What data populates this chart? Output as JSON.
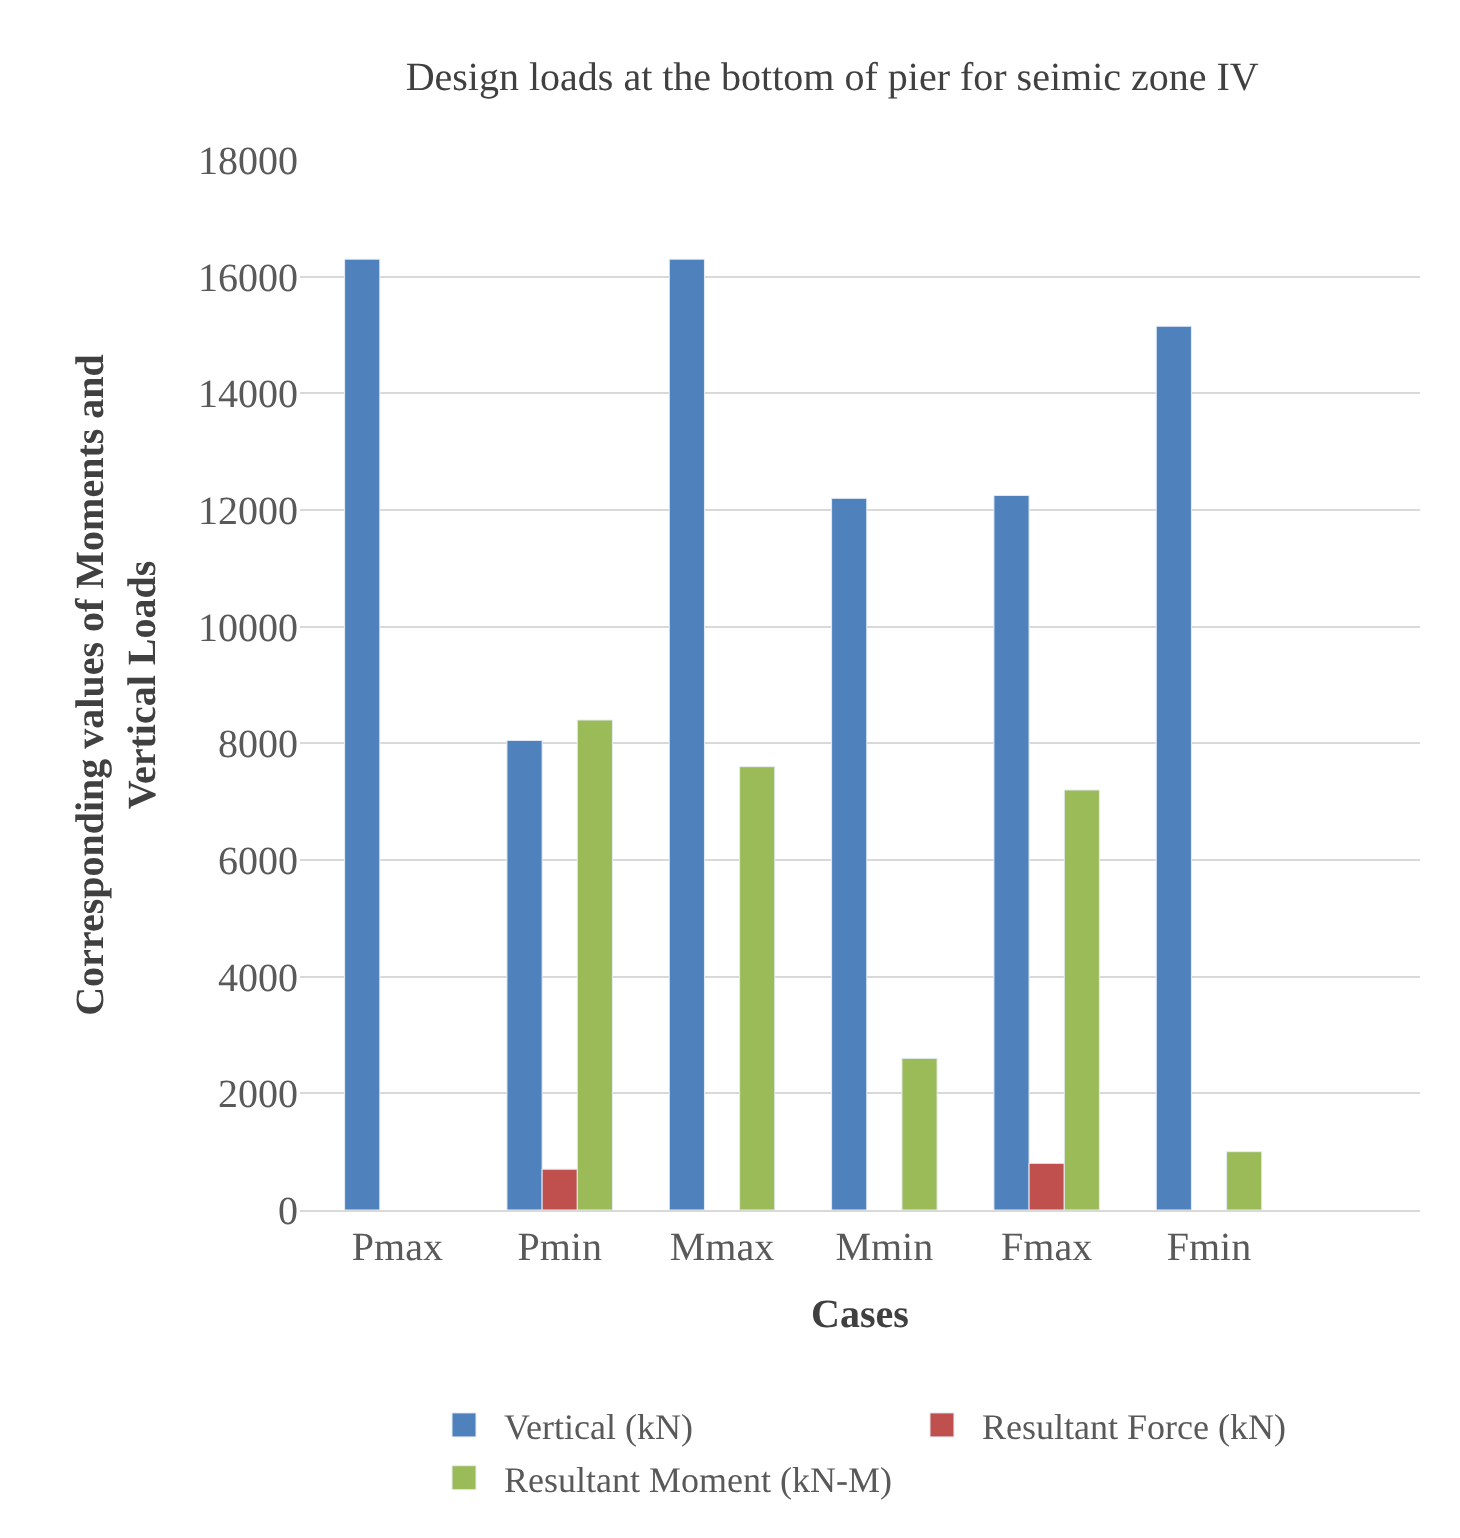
{
  "chart_data": {
    "type": "bar",
    "title": "Design loads at the bottom of pier for seimic zone IV",
    "xlabel": "Cases",
    "ylabel": "Corresponding values of Moments and Vertical Loads",
    "categories": [
      "Pmax",
      "Pmin",
      "Mmax",
      "Mmin",
      "Fmax",
      "Fmin"
    ],
    "series": [
      {
        "name": "Vertical (kN)",
        "color": "#4f81bd",
        "values": [
          16300,
          8050,
          16300,
          12200,
          12250,
          15150
        ]
      },
      {
        "name": "Resultant Force (kN)",
        "color": "#c0504d",
        "values": [
          null,
          700,
          null,
          null,
          800,
          null
        ]
      },
      {
        "name": "Resultant Moment (kN-M)",
        "color": "#9bbb59",
        "values": [
          null,
          8400,
          7600,
          2600,
          7200,
          1000
        ]
      }
    ],
    "ylim": [
      0,
      18000
    ],
    "yticks": [
      0,
      2000,
      4000,
      6000,
      8000,
      10000,
      12000,
      14000,
      16000,
      18000
    ],
    "grid": "y",
    "legend": "bottom"
  }
}
